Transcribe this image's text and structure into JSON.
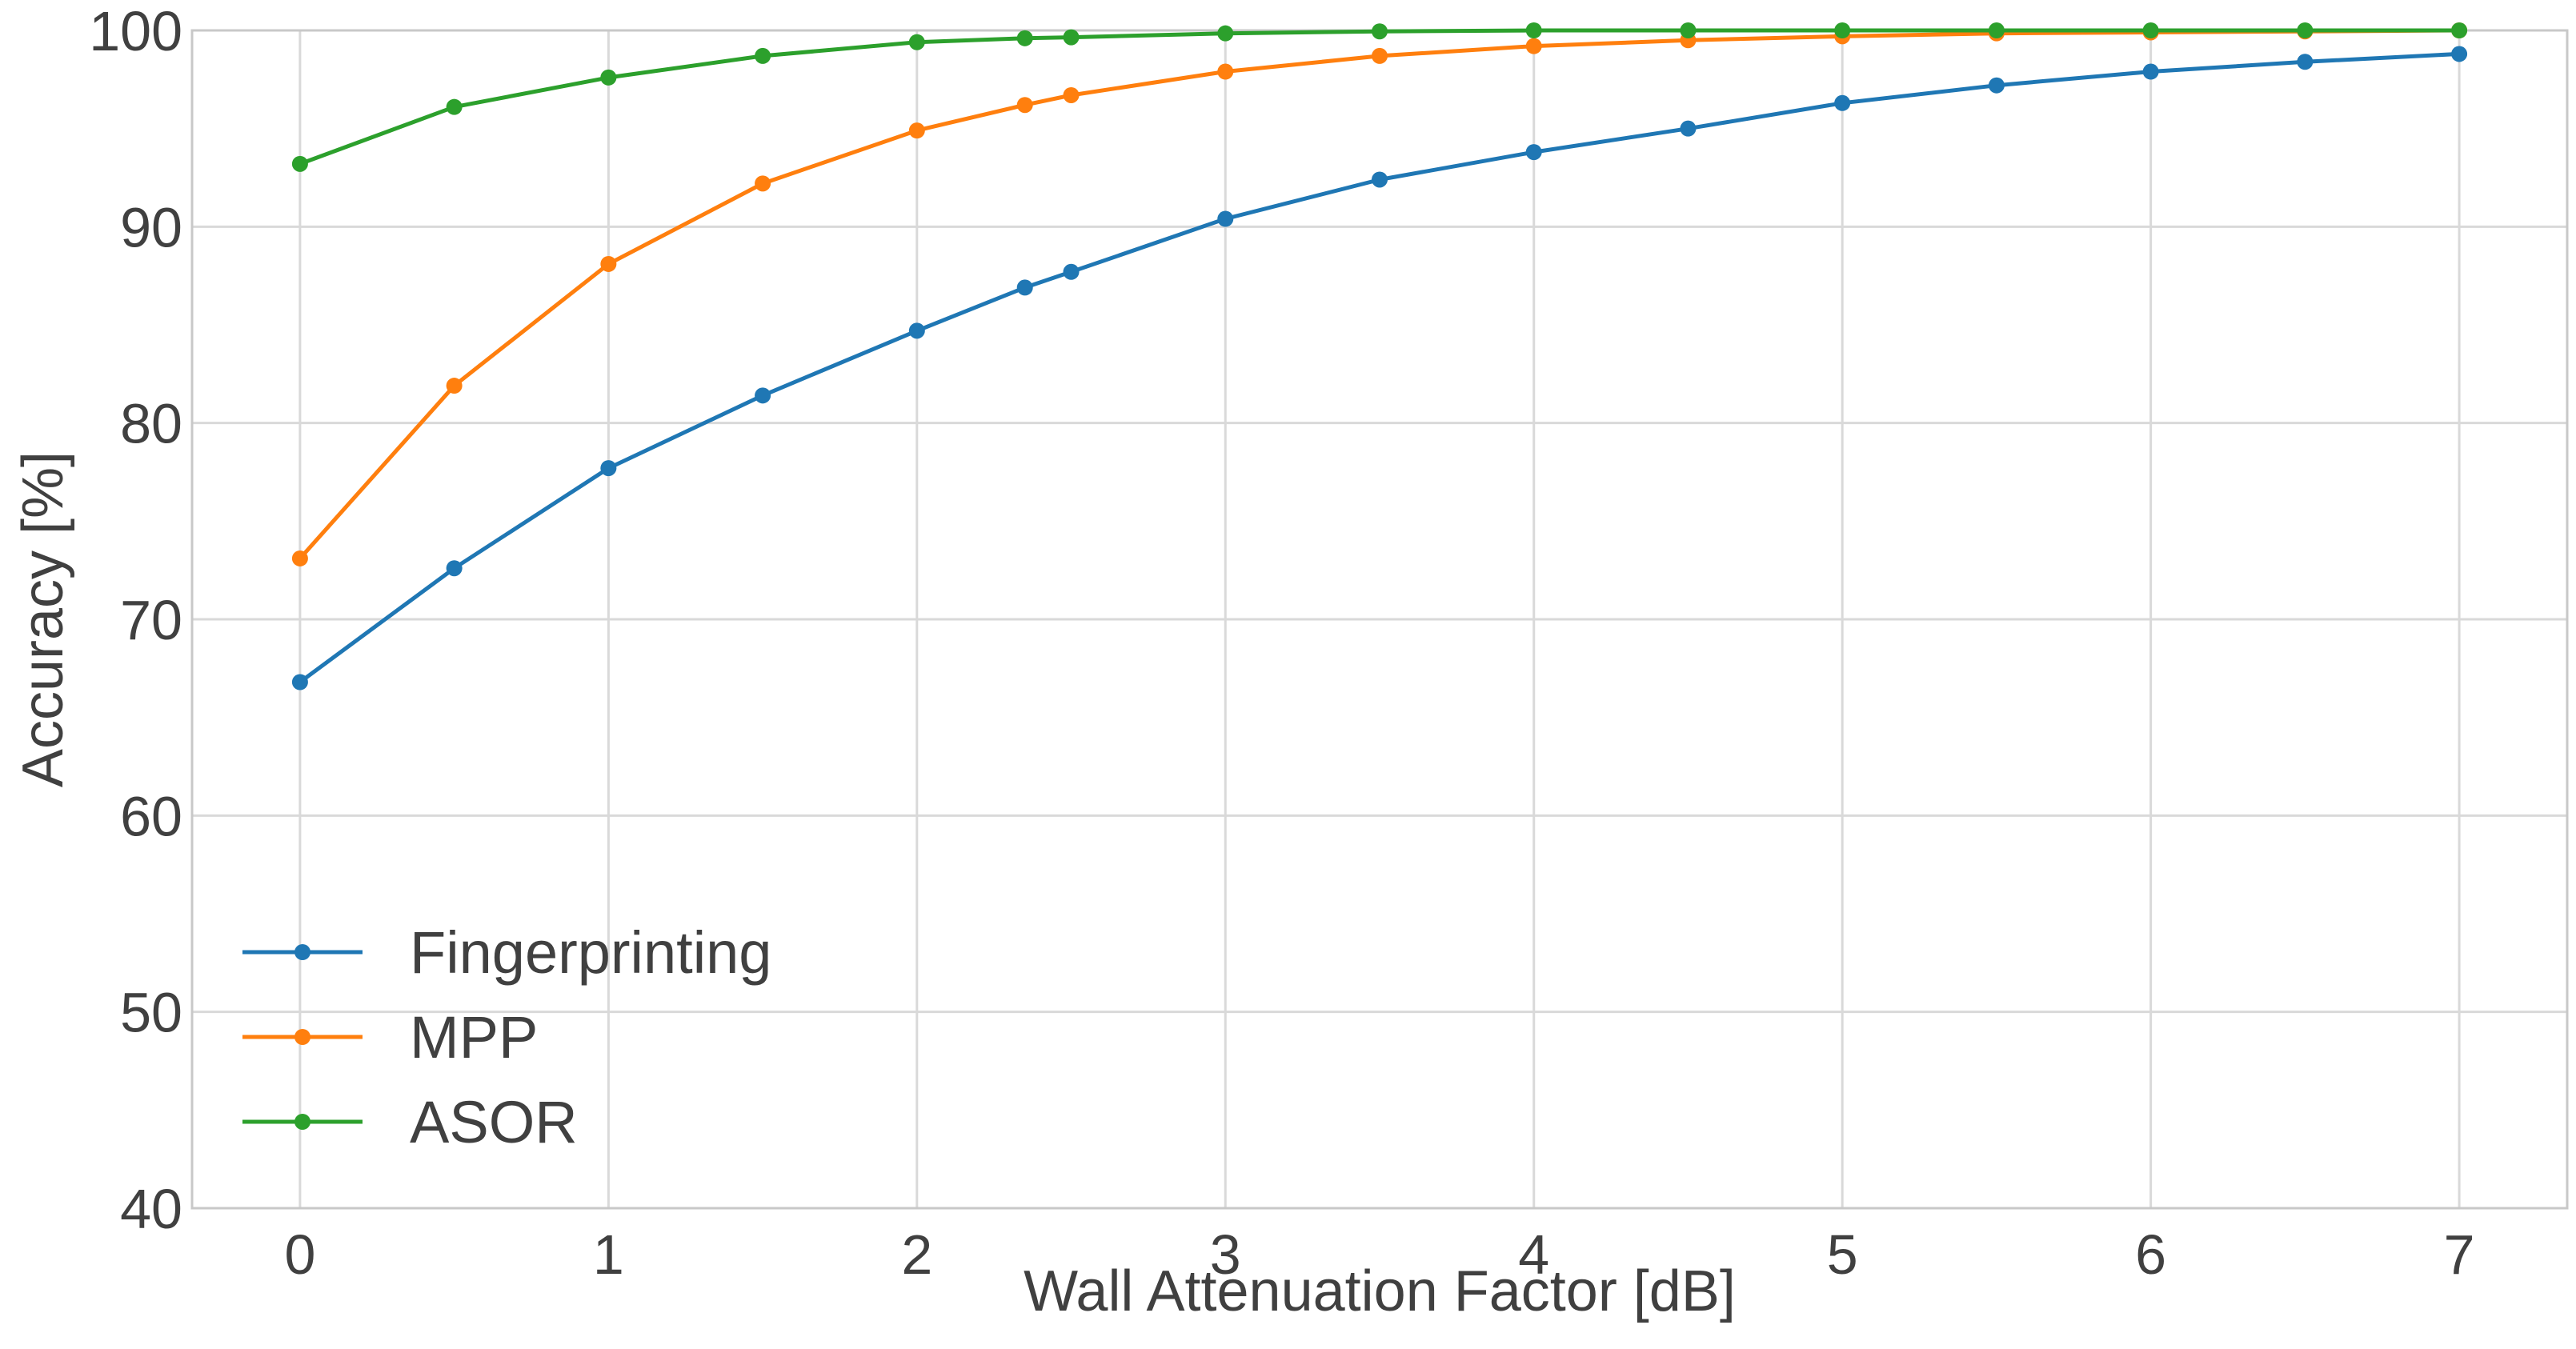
{
  "chart_data": {
    "type": "line",
    "title": "",
    "xlabel": "Wall Attenuation Factor [dB]",
    "ylabel": "Accuracy [%]",
    "xlim": [
      -0.35,
      7.35
    ],
    "ylim": [
      40,
      100
    ],
    "xticks": [
      0,
      1,
      2,
      3,
      4,
      5,
      6,
      7
    ],
    "yticks": [
      40,
      50,
      60,
      70,
      80,
      90,
      100
    ],
    "xtick_labels": [
      "0",
      "1",
      "2",
      "3",
      "4",
      "5",
      "6",
      "7"
    ],
    "ytick_labels": [
      "40",
      "50",
      "60",
      "70",
      "80",
      "90",
      "100"
    ],
    "grid": true,
    "legend_position": "lower-left",
    "series": [
      {
        "name": "Fingerprinting",
        "color": "#1f77b4",
        "x": [
          0,
          0.5,
          1,
          1.5,
          2,
          2.35,
          2.5,
          3,
          3.5,
          4,
          4.5,
          5,
          5.5,
          6,
          6.5,
          7
        ],
        "y": [
          66.8,
          72.6,
          77.7,
          81.4,
          84.7,
          86.9,
          87.7,
          90.4,
          92.4,
          93.8,
          95.0,
          96.3,
          97.2,
          97.9,
          98.4,
          98.8
        ]
      },
      {
        "name": "MPP",
        "color": "#ff7f0e",
        "x": [
          0,
          0.5,
          1,
          1.5,
          2,
          2.35,
          2.5,
          3,
          3.5,
          4,
          4.5,
          5,
          5.5,
          6,
          6.5,
          7
        ],
        "y": [
          73.1,
          81.9,
          88.1,
          92.2,
          94.9,
          96.2,
          96.7,
          97.9,
          98.7,
          99.2,
          99.5,
          99.7,
          99.85,
          99.9,
          99.95,
          100.0
        ]
      },
      {
        "name": "ASOR",
        "color": "#2ca02c",
        "x": [
          0,
          0.5,
          1,
          1.5,
          2,
          2.35,
          2.5,
          3,
          3.5,
          4,
          4.5,
          5,
          5.5,
          6,
          6.5,
          7
        ],
        "y": [
          93.2,
          96.1,
          97.6,
          98.7,
          99.4,
          99.6,
          99.65,
          99.85,
          99.95,
          100.0,
          100.0,
          100.0,
          100.0,
          100.0,
          100.0,
          100.0
        ]
      }
    ]
  }
}
